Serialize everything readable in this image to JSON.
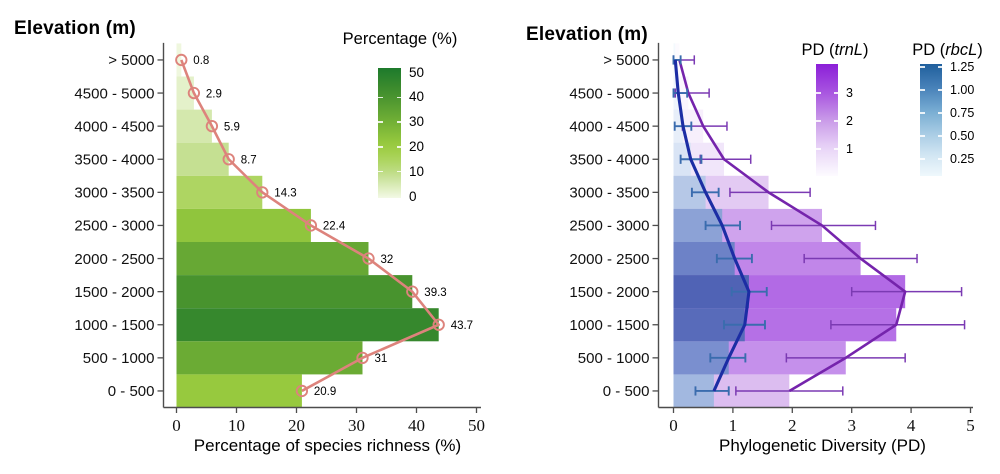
{
  "left_chart": {
    "title": "Elevation (m)",
    "xlabel": "Percentage of species richness (%)",
    "legend": {
      "title": "Percentage (%)",
      "ticks": [
        "50",
        "40",
        "30",
        "20",
        "10",
        "0"
      ]
    }
  },
  "right_chart": {
    "title": "Elevation (m)",
    "xlabel": "Phylogenetic Diversity (PD)",
    "legend_trnl": {
      "prefix": "PD (",
      "gene": "trnL",
      "suffix": ")",
      "ticks": [
        "3",
        "2",
        "1"
      ]
    },
    "legend_rbcl": {
      "prefix": "PD (",
      "gene": "rbcL",
      "suffix": ")",
      "ticks": [
        "1.25",
        "1.00",
        "0.75",
        "0.50",
        "0.25"
      ]
    }
  },
  "colors": {
    "axis": "#4d4d4d",
    "text": "#000000",
    "background": "#ffffff"
  },
  "chart_data": [
    {
      "type": "bar",
      "orientation": "horizontal",
      "title": "Elevation (m)",
      "xlabel": "Percentage of species richness (%)",
      "legend_title": "Percentage (%)",
      "legend_position": "right",
      "grid": false,
      "xlim": [
        0,
        50
      ],
      "x_ticks": [
        0,
        10,
        20,
        30,
        40,
        50
      ],
      "categories": [
        "> 5000",
        "4500 - 5000",
        "4000 - 4500",
        "3500 - 4000",
        "3000 - 3500",
        "2500 - 3000",
        "2000 - 2500",
        "1500 - 2000",
        "1000 - 1500",
        "500 - 1000",
        "0 - 500"
      ],
      "values": [
        0.8,
        2.9,
        5.9,
        8.7,
        14.3,
        22.4,
        32,
        39.3,
        43.7,
        31,
        20.9
      ],
      "value_labels": [
        "0.8",
        "2.9",
        "5.9",
        "8.7",
        "14.3",
        "22.4",
        "32",
        "39.3",
        "43.7",
        "31",
        "20.9"
      ],
      "line_overlay": {
        "color": "#dd837c",
        "marker": "open-circle"
      },
      "bar_colormap": {
        "legend_range": [
          0,
          50
        ],
        "stops": [
          [
            0,
            "#f3f9e6"
          ],
          [
            10,
            "#bedc85"
          ],
          [
            15,
            "#abd45c"
          ],
          [
            20,
            "#9bcc3f"
          ],
          [
            30,
            "#6fae35"
          ],
          [
            40,
            "#45912e"
          ],
          [
            50,
            "#1d7a2c"
          ]
        ]
      }
    },
    {
      "type": "bar",
      "orientation": "horizontal",
      "title": "Elevation (m)",
      "xlabel": "Phylogenetic Diversity (PD)",
      "grid": false,
      "xlim": [
        0,
        5
      ],
      "x_ticks": [
        0,
        1,
        2,
        3,
        4,
        5
      ],
      "categories": [
        "> 5000",
        "4500 - 5000",
        "4000 - 4500",
        "3500 - 4000",
        "3000 - 3500",
        "2500 - 3000",
        "2000 - 2500",
        "1500 - 2000",
        "1000 - 1500",
        "500 - 1000",
        "0 - 500"
      ],
      "series": [
        {
          "name": "PD (trnL)",
          "values": [
            0.1,
            0.25,
            0.5,
            0.85,
            1.6,
            2.5,
            3.15,
            3.9,
            3.75,
            2.9,
            1.95
          ],
          "err_low": [
            0.0,
            0.03,
            0.15,
            0.45,
            0.95,
            1.65,
            2.2,
            3.0,
            2.65,
            1.9,
            1.05
          ],
          "err_high": [
            0.35,
            0.6,
            0.9,
            1.3,
            2.3,
            3.4,
            4.1,
            4.85,
            4.9,
            3.9,
            2.85
          ],
          "line_color": "#7524ac",
          "error_color": "#7b3ab3",
          "bar_opacity": 0.68,
          "colormap": {
            "legend_range": [
              0,
              4
            ],
            "stops": [
              [
                0,
                "#fdfbff"
              ],
              [
                1,
                "#e8d4f7"
              ],
              [
                2,
                "#c99ae8"
              ],
              [
                3,
                "#a754e0"
              ],
              [
                4,
                "#8b1fd8"
              ]
            ]
          }
        },
        {
          "name": "PD (rbcL)",
          "values": [
            0.03,
            0.08,
            0.16,
            0.29,
            0.54,
            0.82,
            1.03,
            1.27,
            1.2,
            0.93,
            0.68
          ],
          "err_low": [
            0.0,
            0.0,
            0.02,
            0.12,
            0.31,
            0.54,
            0.73,
            0.98,
            0.85,
            0.62,
            0.37
          ],
          "err_high": [
            0.12,
            0.23,
            0.3,
            0.47,
            0.76,
            1.12,
            1.32,
            1.57,
            1.54,
            1.21,
            0.93
          ],
          "line_color": "#1c2da4",
          "error_color": "#3a6cae",
          "bar_opacity": 0.68,
          "colormap": {
            "legend_range": [
              0.03,
              1.28
            ],
            "stops": [
              [
                0,
                "#f3fafd"
              ],
              [
                0.25,
                "#d4e7f4"
              ],
              [
                0.5,
                "#a9cce4"
              ],
              [
                0.75,
                "#79add3"
              ],
              [
                1,
                "#4a84ba"
              ],
              [
                1.3,
                "#1d5c9b"
              ]
            ]
          }
        }
      ]
    }
  ]
}
